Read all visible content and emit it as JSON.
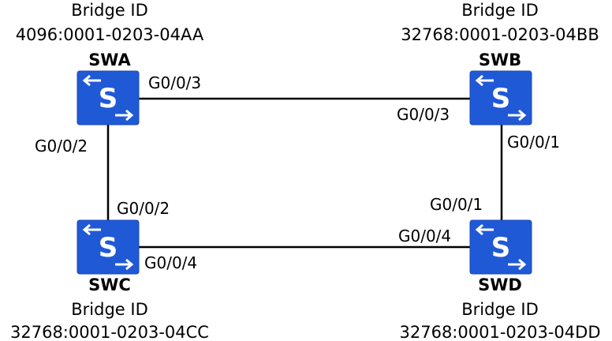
{
  "colors": {
    "switch_fill": "#2059d6",
    "switch_border": "#1a49b4",
    "switch_glyph": "#ffffff",
    "line": "#000000",
    "text": "#000000"
  },
  "switches": {
    "swa": {
      "name": "SWA",
      "bridge_label": "Bridge ID",
      "bridge_id": "4096:0001-0203-04AA",
      "icon": "switch-icon"
    },
    "swb": {
      "name": "SWB",
      "bridge_label": "Bridge ID",
      "bridge_id": "32768:0001-0203-04BB",
      "icon": "switch-icon"
    },
    "swc": {
      "name": "SWC",
      "bridge_label": "Bridge ID",
      "bridge_id": "32768:0001-0203-04CC",
      "icon": "switch-icon"
    },
    "swd": {
      "name": "SWD",
      "bridge_label": "Bridge ID",
      "bridge_id": "32768:0001-0203-04DD",
      "icon": "switch-icon"
    }
  },
  "links": {
    "ab": {
      "a_port": "G0/0/3",
      "b_port": "G0/0/3"
    },
    "ac": {
      "a_port": "G0/0/2",
      "c_port": "G0/0/2"
    },
    "bd": {
      "b_port": "G0/0/1",
      "d_port": "G0/0/1"
    },
    "cd": {
      "c_port": "G0/0/4",
      "d_port": "G0/0/4"
    }
  }
}
